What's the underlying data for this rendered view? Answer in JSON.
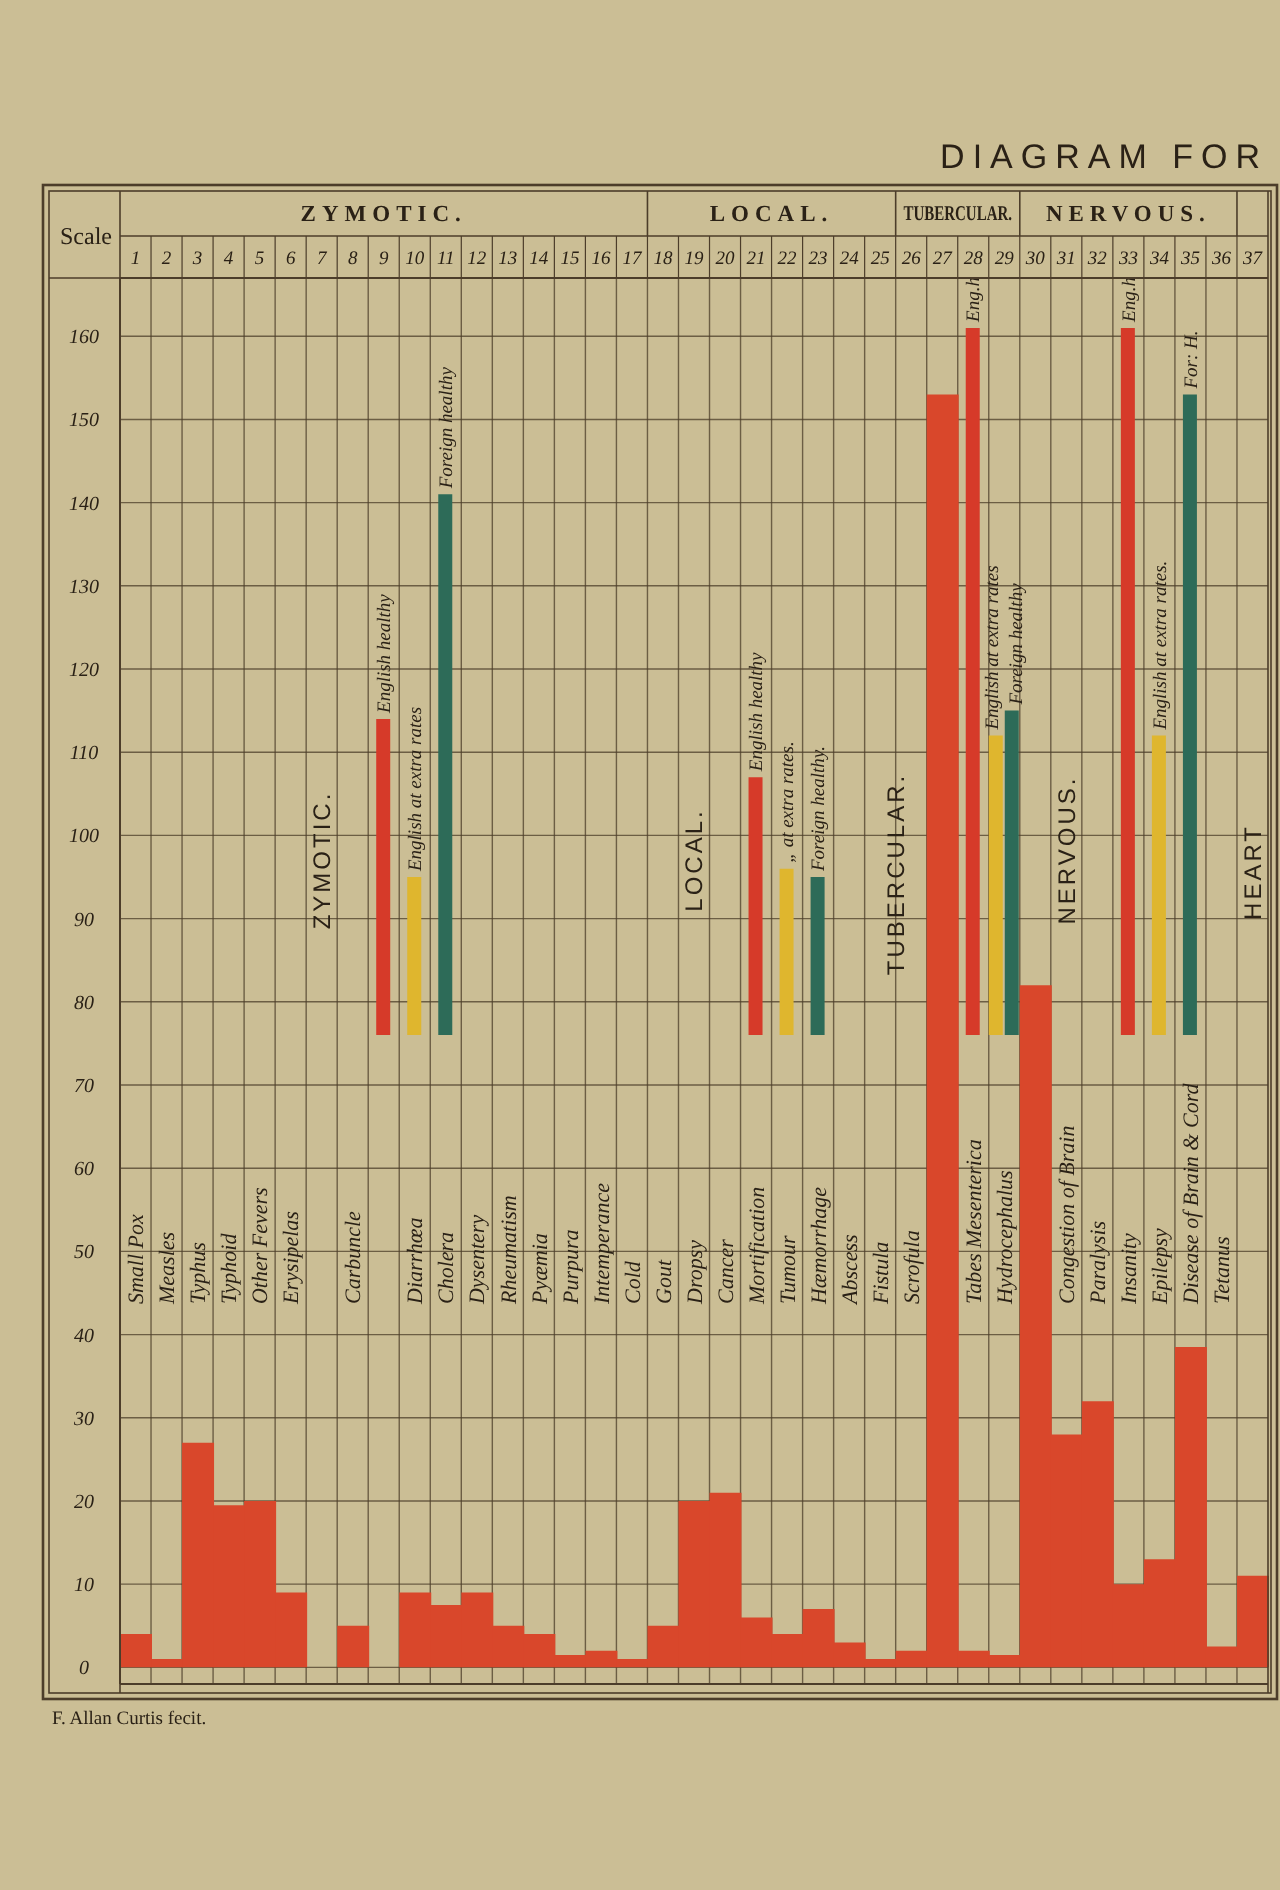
{
  "chart_data": {
    "type": "bar",
    "title": "DIAGRAM FOR",
    "ylabel": "Scale",
    "categories": [
      "Small Pox",
      "Measles",
      "Typhus",
      "Typhoid",
      "Other Fevers",
      "Erysipelas",
      null,
      "Carbuncle",
      null,
      "Diarrhœa",
      "Cholera",
      "Dysentery",
      "Rheumatism",
      "Pyæmia",
      "Purpura",
      "Intemperance",
      "Cold",
      "Gout",
      "Dropsy",
      "Cancer",
      "Mortification",
      "Tumour",
      "Hæmorrhage",
      "Abscess",
      "Fistula",
      "Scrofula",
      null,
      "Tabes Mesenterica",
      "Hydrocephalus",
      null,
      "Congestion of Brain",
      "Paralysis",
      "Insanity",
      "Epilepsy",
      "Disease of Brain & Cord",
      "Tetanus",
      null
    ],
    "series": [
      {
        "color": "#d9472b",
        "values": [
          4,
          1,
          27,
          19.5,
          20,
          9,
          null,
          5,
          null,
          9,
          7.5,
          9,
          5,
          4,
          1.5,
          2,
          1,
          5,
          20,
          21,
          6,
          4,
          7,
          3,
          1,
          2,
          153,
          2,
          1.5,
          82,
          28,
          32,
          10,
          13,
          38.5,
          2.5,
          11
        ]
      },
      {
        "color": "#d63a29",
        "values": [
          null,
          null,
          null,
          null,
          null,
          null,
          null,
          null,
          38,
          null,
          null,
          null,
          null,
          null,
          null,
          null,
          null,
          null,
          null,
          null,
          31,
          null,
          null,
          null,
          null,
          null,
          null,
          85,
          null,
          null,
          null,
          null,
          85,
          null,
          null,
          null,
          null
        ],
        "base": [
          null,
          null,
          null,
          null,
          null,
          null,
          null,
          null,
          76,
          null,
          null,
          null,
          null,
          null,
          null,
          null,
          null,
          null,
          null,
          null,
          76,
          null,
          null,
          null,
          null,
          null,
          null,
          76,
          null,
          null,
          null,
          null,
          76,
          null,
          null,
          null,
          null
        ]
      },
      {
        "color": "#dfb62e",
        "values": [
          null,
          null,
          null,
          null,
          null,
          null,
          null,
          null,
          null,
          19,
          null,
          null,
          null,
          null,
          null,
          null,
          null,
          null,
          null,
          null,
          null,
          20,
          null,
          null,
          null,
          null,
          null,
          null,
          36,
          null,
          null,
          null,
          null,
          36,
          null,
          null,
          null
        ],
        "base": [
          null,
          null,
          null,
          null,
          null,
          null,
          null,
          null,
          null,
          76,
          null,
          null,
          null,
          null,
          null,
          null,
          null,
          null,
          null,
          null,
          null,
          76,
          null,
          null,
          null,
          null,
          null,
          null,
          76,
          null,
          null,
          null,
          null,
          76,
          null,
          null,
          null
        ]
      },
      {
        "color": "#2d6b58",
        "values": [
          null,
          null,
          null,
          null,
          null,
          null,
          null,
          null,
          null,
          null,
          65,
          null,
          null,
          null,
          null,
          null,
          null,
          null,
          null,
          null,
          null,
          null,
          19,
          null,
          null,
          null,
          null,
          null,
          39,
          null,
          null,
          null,
          null,
          null,
          77,
          null,
          null
        ],
        "base": [
          null,
          null,
          null,
          null,
          null,
          null,
          null,
          null,
          null,
          null,
          76,
          null,
          null,
          null,
          null,
          null,
          null,
          null,
          null,
          null,
          null,
          null,
          76,
          null,
          null,
          null,
          null,
          null,
          76,
          null,
          null,
          null,
          null,
          null,
          76,
          null,
          null
        ]
      }
    ],
    "ylim": [
      -2,
      167
    ],
    "yticks": [
      0,
      10,
      20,
      30,
      40,
      50,
      60,
      70,
      80,
      90,
      100,
      110,
      120,
      130,
      140,
      150,
      160
    ],
    "x2lim": [
      0.5,
      37.5
    ],
    "x2ticks": [
      1,
      2,
      3,
      4,
      5,
      6,
      7,
      8,
      9,
      10,
      11,
      12,
      13,
      14,
      15,
      16,
      17,
      18,
      19,
      20,
      21,
      22,
      23,
      24,
      25,
      26,
      27,
      28,
      29,
      30,
      31,
      32,
      33,
      34,
      35,
      36,
      37
    ],
    "grid": true,
    "annotations": [
      "ZYMOTIC.",
      "LOCAL.",
      "TUBERCULAR.",
      "NERVOUS.",
      "ZYMOTIC.",
      "LOCAL.",
      "TUBERCULAR.",
      "NERVOUS.",
      "HEART",
      "F. Allan Curtis fecit.",
      "English healthy",
      {
        "text": "English healthy",
        "x": "Mortification",
        "y": 107
      },
      {
        "text": "English at extra rates",
        "x": "Diarrhœa",
        "y": 95
      },
      {
        "text": "English at extra rates",
        "x": "Hydrocephalus",
        "y": 112
      },
      {
        "text": "Foreign healthy",
        "x": "Cholera",
        "y": 141
      },
      {
        "text": "Foreign healthy",
        "x": "Hydrocephalus",
        "y": 115
      },
      {
        "text": "„ at extra rates.",
        "x": "Tumour",
        "y": 96
      },
      {
        "text": "Foreign healthy.",
        "x": "Hæmorrhage",
        "y": 95
      },
      {
        "text": "Eng.h",
        "x": "Tabes Mesenterica",
        "y": 161
      },
      {
        "text": "Eng.h",
        "x": "Insanity",
        "y": 161
      },
      {
        "text": "English at extra rates.",
        "x": "Epilepsy",
        "y": 112
      },
      {
        "text": "For: H.",
        "x": "Disease of Brain & Cord",
        "y": 153
      }
    ]
  }
}
